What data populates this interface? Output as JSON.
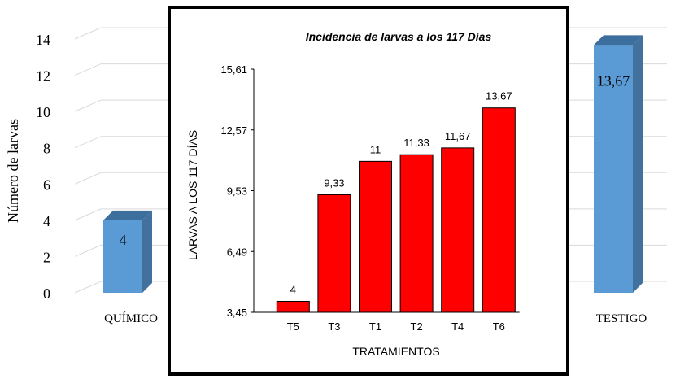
{
  "chart_data": [
    {
      "type": "bar3d",
      "ylabel": "Número de larvas",
      "categories": [
        "QUÍMICO",
        "TESTIGO"
      ],
      "values": [
        4,
        13.67
      ],
      "value_labels": [
        "4",
        "13,67"
      ],
      "color": "#5b9bd5",
      "ylim": [
        0,
        14
      ],
      "yticks": [
        0,
        2,
        4,
        6,
        8,
        10,
        12,
        14
      ],
      "grid": true
    },
    {
      "type": "bar",
      "title": "Incidencia de larvas a los 117 Días",
      "xlabel": "TRATAMIENTOS",
      "ylabel": "LARVAS A LOS 117 DÍAS",
      "categories": [
        "T5",
        "T3",
        "T1",
        "T2",
        "T4",
        "T6"
      ],
      "values": [
        4,
        9.33,
        11,
        11.33,
        11.67,
        13.67
      ],
      "value_labels": [
        "4",
        "9,33",
        "11",
        "11,33",
        "11,67",
        "13,67"
      ],
      "color": "#ff0000",
      "ylim": [
        3.45,
        15.61
      ],
      "yticks": [
        {
          "value": 3.45,
          "label": "3,45"
        },
        {
          "value": 6.49,
          "label": "6,49"
        },
        {
          "value": 9.53,
          "label": "9,53"
        },
        {
          "value": 12.57,
          "label": "12,57"
        },
        {
          "value": 15.61,
          "label": "15,61"
        }
      ]
    }
  ]
}
